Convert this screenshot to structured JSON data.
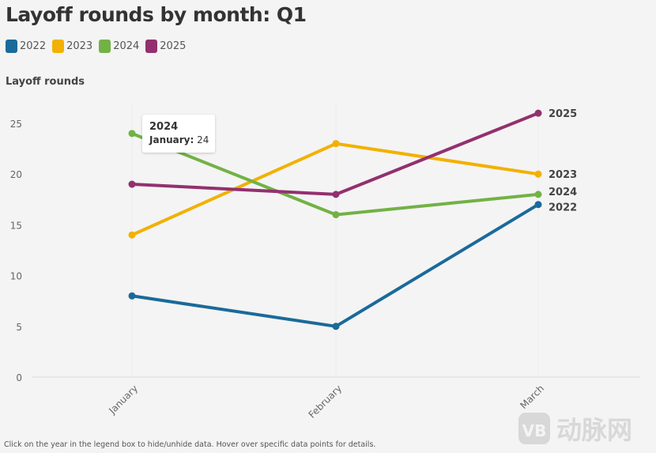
{
  "chart_data": {
    "type": "line",
    "title": "Layoff rounds by month: Q1",
    "ylabel": "Layoff rounds",
    "xlabel": "",
    "categories": [
      "January",
      "February",
      "March"
    ],
    "ylim": [
      0,
      27
    ],
    "yticks": [
      0,
      5,
      10,
      15,
      20,
      25
    ],
    "grid": false,
    "legend_position": "top-left",
    "series": [
      {
        "name": "2022",
        "color": "#1a6a9a",
        "values": [
          8,
          5,
          17
        ]
      },
      {
        "name": "2023",
        "color": "#f2b100",
        "values": [
          14,
          23,
          20
        ]
      },
      {
        "name": "2024",
        "color": "#72b245",
        "values": [
          24,
          16,
          18
        ]
      },
      {
        "name": "2025",
        "color": "#93306f",
        "values": [
          19,
          18,
          26
        ]
      }
    ]
  },
  "tooltip": {
    "series": "2024",
    "label": "January:",
    "value": "24"
  },
  "note": "Click on the year in the legend box to hide/unhide data. Hover over specific data points for details.",
  "watermark": "VB 动脉网"
}
